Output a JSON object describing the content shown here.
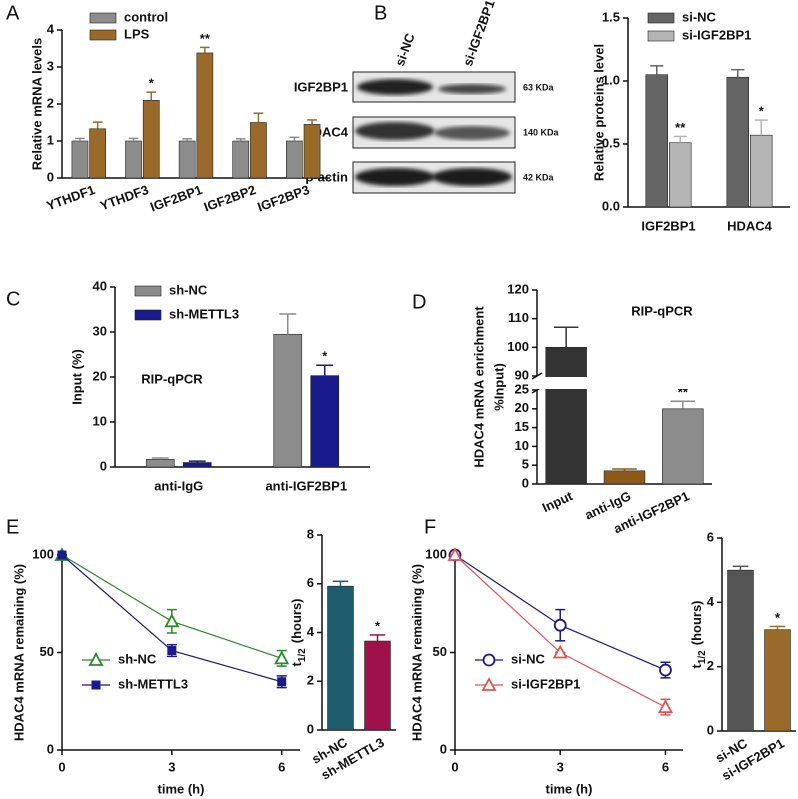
{
  "panels": [
    "A",
    "B",
    "C",
    "D",
    "E",
    "F"
  ],
  "blot": {
    "lanes": [
      "si-NC",
      "si-IGF2BP1"
    ],
    "proteins": [
      "IGF2BP1",
      "HDAC4",
      "β-actin"
    ],
    "sizes": [
      "63 KDa",
      "140 KDa",
      "42 KDa"
    ]
  },
  "chart_data": [
    {
      "type": "bar",
      "ylabel": "Relative mRNA levels",
      "categories": [
        "YTHDF1",
        "YTHDF3",
        "IGF2BP1",
        "IGF2BP2",
        "IGF2BP3"
      ],
      "series": [
        {
          "name": "control",
          "color": "#8c8c8c",
          "values": [
            1,
            1,
            1,
            1,
            1
          ],
          "errors": [
            0.07,
            0.07,
            0.06,
            0.06,
            0.1
          ]
        },
        {
          "name": "LPS",
          "color": "#9a6a2a",
          "values": [
            1.33,
            2.1,
            3.38,
            1.5,
            1.45
          ],
          "errors": [
            0.18,
            0.22,
            0.15,
            0.25,
            0.12
          ],
          "significance": [
            null,
            "*",
            "**",
            null,
            null
          ]
        }
      ],
      "ylim": [
        0,
        4
      ],
      "yticks": [
        0,
        1,
        2,
        3,
        4
      ],
      "legend": "upper left"
    },
    {
      "type": "bar",
      "ylabel": "Relative proteins level",
      "categories": [
        "IGF2BP1",
        "HDAC4"
      ],
      "series": [
        {
          "name": "si-NC",
          "color": "#646464",
          "values": [
            1.05,
            1.03
          ],
          "errors": [
            0.07,
            0.06
          ]
        },
        {
          "name": "si-IGF2BP1",
          "color": "#b4b4b4",
          "values": [
            0.51,
            0.57
          ],
          "errors": [
            0.05,
            0.12
          ],
          "significance": [
            "**",
            "*"
          ]
        }
      ],
      "ylim": [
        0,
        1.5
      ],
      "yticks": [
        {
          "value": 0,
          "label": "0.0"
        },
        0.5,
        {
          "value": 1,
          "label": "1.0"
        },
        1.5
      ],
      "legend": "upper left"
    },
    {
      "type": "bar",
      "ylabel": "Input (%)",
      "annotation": "RIP-qPCR",
      "categories": [
        "anti-IgG",
        "anti-IGF2BP1"
      ],
      "series": [
        {
          "name": "sh-NC",
          "color": "#8c8c8c",
          "values": [
            1.7,
            29.5
          ],
          "errors": [
            0.3,
            4.5
          ]
        },
        {
          "name": "sh-METTL3",
          "color": "#1a1a8c",
          "values": [
            1,
            20.3
          ],
          "errors": [
            0.3,
            2.3
          ],
          "significance": [
            null,
            "*"
          ]
        }
      ],
      "ylim": [
        0,
        40
      ],
      "yticks": [
        0,
        10,
        20,
        30,
        40
      ],
      "legend": "upper left"
    },
    {
      "type": "bar",
      "ylabel": [
        "HDAC4 mRNA enrichment",
        "%Input)"
      ],
      "annotation": "RIP-qPCR",
      "categories": [
        "Input",
        "anti-IgG",
        "anti-IGF2BP1"
      ],
      "values": [
        100,
        3.5,
        20
      ],
      "errors": [
        7,
        0.5,
        2
      ],
      "colors": [
        "#333333",
        "#8b5a1a",
        "#8c8c8c"
      ],
      "significance": [
        null,
        null,
        "**"
      ],
      "ylim": [
        0,
        120
      ],
      "ybreak": [
        25,
        90
      ],
      "yticks": [
        0,
        5,
        10,
        15,
        20,
        25,
        90,
        100,
        110,
        120
      ]
    },
    {
      "type": "line",
      "xlabel": "time (h)",
      "ylabel": "HDAC4 mRNA remaining (%)",
      "x": [
        0,
        3,
        6
      ],
      "series": [
        {
          "name": "sh-NC",
          "color": "#2a8a2a",
          "marker": "triangle",
          "values": [
            100,
            66,
            47
          ],
          "errors": [
            0,
            6,
            4
          ]
        },
        {
          "name": "sh-METTL3",
          "color": "#1a1a8c",
          "marker": "square",
          "values": [
            100,
            51,
            35
          ],
          "errors": [
            0,
            3,
            3
          ]
        }
      ],
      "xlim": [
        0,
        6.5
      ],
      "xticks": [
        0,
        3,
        6
      ],
      "ylim": [
        0,
        100
      ],
      "yticks": [
        0,
        50,
        100
      ],
      "legend": "lower left"
    },
    {
      "type": "bar",
      "ylabel": "t",
      "ylabel_subscript": "1/2",
      "ylabel_unit": "(hours)",
      "categories": [
        "sh-NC",
        "sh-METTL3"
      ],
      "values": [
        5.9,
        3.65
      ],
      "errors": [
        0.2,
        0.25
      ],
      "colors": [
        "#1e5c6e",
        "#a0104a"
      ],
      "significance": [
        null,
        "*"
      ],
      "ylim": [
        0,
        8
      ],
      "yticks": [
        0,
        2,
        4,
        6,
        8
      ]
    },
    {
      "type": "line",
      "xlabel": "time (h)",
      "ylabel": "HDAC4 mRNA remaining (%)",
      "x": [
        0,
        3,
        6
      ],
      "series": [
        {
          "name": "si-NC",
          "color": "#1a1a8c",
          "marker": "circle",
          "values": [
            100,
            64,
            41
          ],
          "errors": [
            0,
            8,
            4
          ]
        },
        {
          "name": "si-IGF2BP1",
          "color": "#e85050",
          "marker": "triangle",
          "values": [
            100,
            50,
            22
          ],
          "errors": [
            0,
            0,
            4
          ]
        }
      ],
      "xlim": [
        0,
        6.5
      ],
      "xticks": [
        0,
        3,
        6
      ],
      "ylim": [
        0,
        100
      ],
      "yticks": [
        0,
        50,
        100
      ],
      "legend": "lower left"
    },
    {
      "type": "bar",
      "ylabel": "t",
      "ylabel_subscript": "1/2",
      "ylabel_unit": "(hours)",
      "categories": [
        "si-NC",
        "si-IGF2BP1"
      ],
      "values": [
        5,
        3.15
      ],
      "errors": [
        0.12,
        0.1
      ],
      "colors": [
        "#555555",
        "#9a6a2a"
      ],
      "significance": [
        null,
        "*"
      ],
      "ylim": [
        0,
        6
      ],
      "yticks": [
        0,
        2,
        4,
        6
      ]
    }
  ]
}
